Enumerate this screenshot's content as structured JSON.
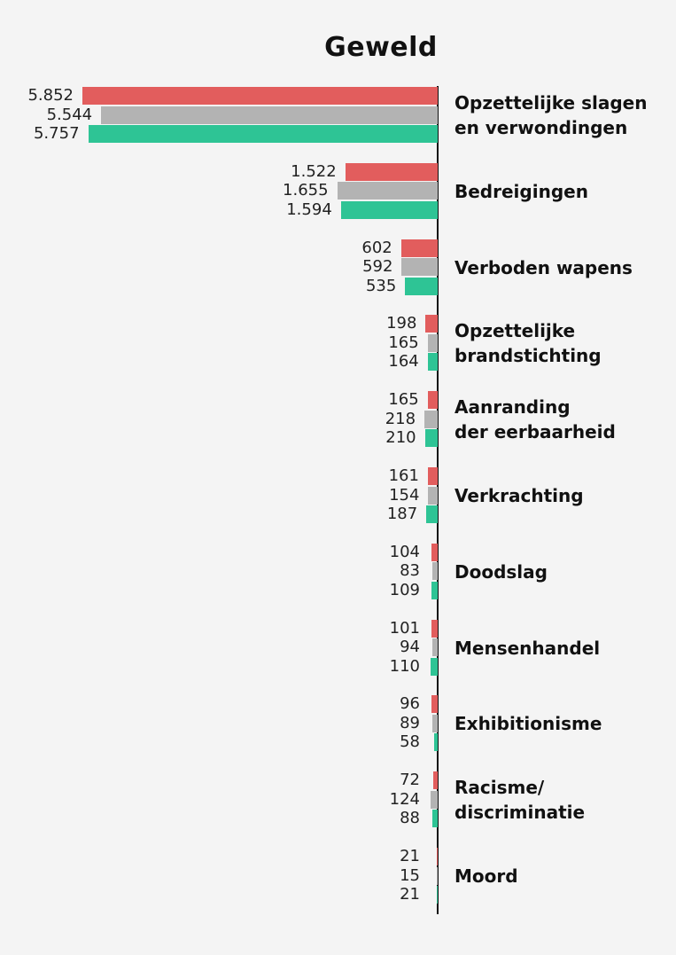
{
  "title": "Geweld",
  "colors": {
    "series1": "#e25d5d",
    "series2": "#b3b3b3",
    "series3": "#2ec495"
  },
  "chart_data": {
    "type": "bar",
    "orientation": "horizontal",
    "title": "Geweld",
    "categories": [
      "Opzettelijke slagen en verwondingen",
      "Bedreigingen",
      "Verboden wapens",
      "Opzettelijke brandstichting",
      "Aanranding der eerbaarheid",
      "Verkrachting",
      "Doodslag",
      "Mensenhandel",
      "Exhibitionisme",
      "Racisme/ discriminatie",
      "Moord"
    ],
    "series": [
      {
        "name": "series1",
        "color": "#e25d5d",
        "values": [
          5852,
          1522,
          602,
          198,
          165,
          161,
          104,
          101,
          96,
          72,
          21
        ]
      },
      {
        "name": "series2",
        "color": "#b3b3b3",
        "values": [
          5544,
          1655,
          592,
          165,
          218,
          154,
          83,
          94,
          89,
          124,
          15
        ]
      },
      {
        "name": "series3",
        "color": "#2ec495",
        "values": [
          5757,
          1594,
          535,
          164,
          210,
          187,
          109,
          110,
          58,
          88,
          21
        ]
      }
    ],
    "value_labels": [
      [
        "5.852",
        "5.544",
        "5.757"
      ],
      [
        "1.522",
        "1.655",
        "1.594"
      ],
      [
        "602",
        "592",
        "535"
      ],
      [
        "198",
        "165",
        "164"
      ],
      [
        "165",
        "218",
        "210"
      ],
      [
        "161",
        "154",
        "187"
      ],
      [
        "104",
        "83",
        "109"
      ],
      [
        "101",
        "94",
        "110"
      ],
      [
        "96",
        "89",
        "58"
      ],
      [
        "72",
        "124",
        "88"
      ],
      [
        "21",
        "15",
        "21"
      ]
    ],
    "label_lines": [
      [
        "Opzettelijke slagen",
        "en verwondingen"
      ],
      [
        "Bedreigingen"
      ],
      [
        "Verboden wapens"
      ],
      [
        "Opzettelijke",
        "brandstichting"
      ],
      [
        "Aanranding",
        "der eerbaarheid"
      ],
      [
        "Verkrachting"
      ],
      [
        "Doodslag"
      ],
      [
        "Mensenhandel"
      ],
      [
        "Exhibitionisme"
      ],
      [
        "Racisme/",
        "discriminatie"
      ],
      [
        "Moord"
      ]
    ],
    "grid": false,
    "legend": "none"
  }
}
